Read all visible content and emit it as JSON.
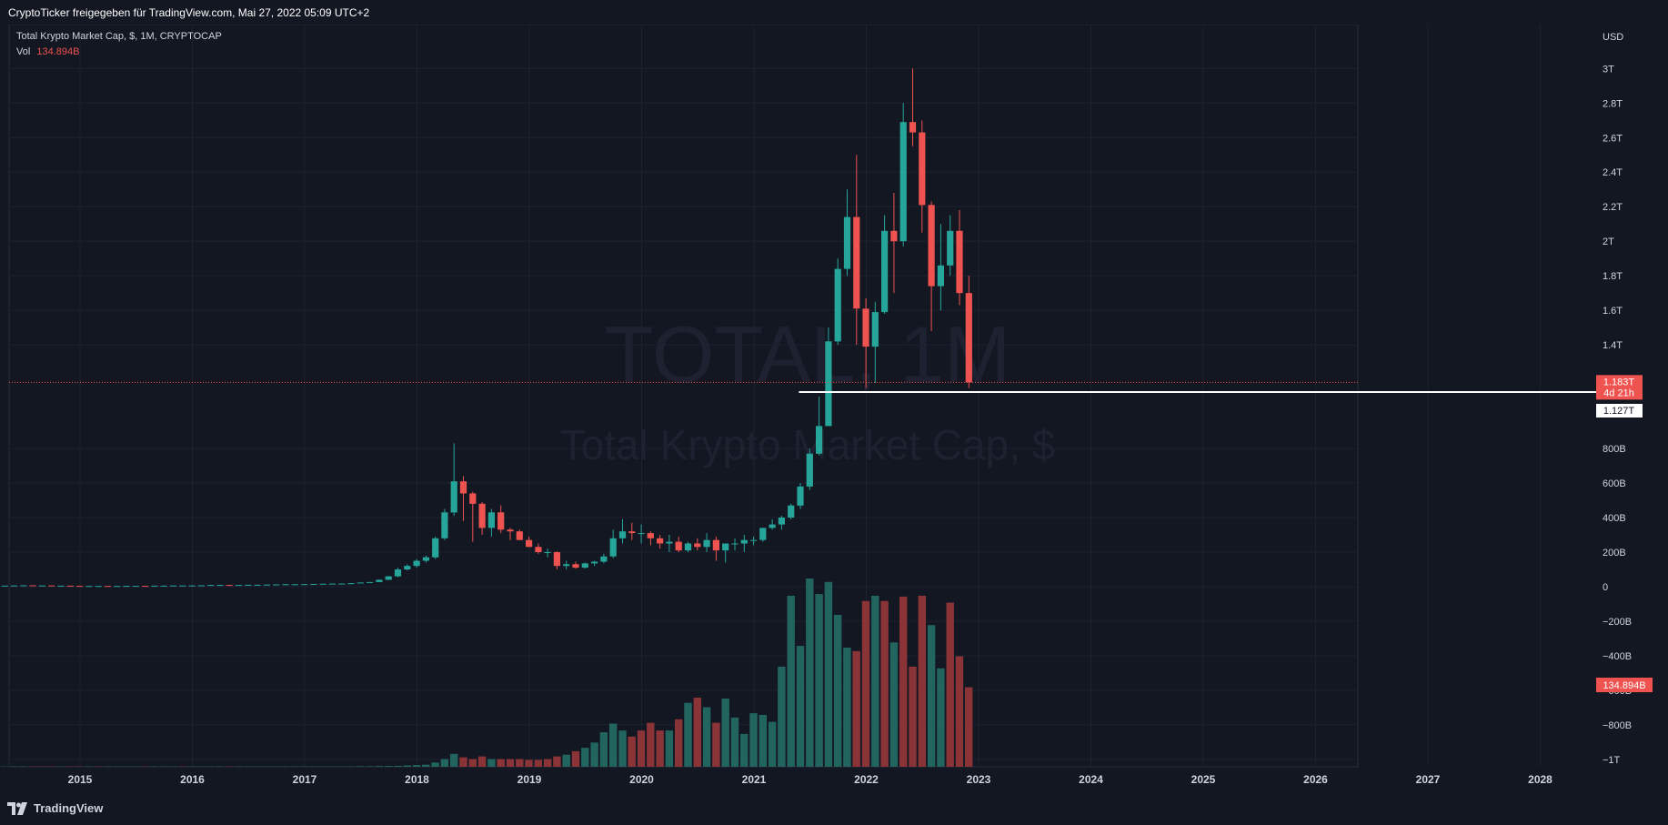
{
  "header": {
    "caption": "CryptoTicker freigegeben für TradingView.com, Mai 27, 2022 05:09 UTC+2"
  },
  "legend": {
    "series_title": "Total Krypto Market Cap, $, 1M, CRYPTOCAP",
    "vol_label": "Vol",
    "vol_value": "134.894B"
  },
  "watermark": {
    "symbol": "TOTAL, 1M",
    "name": "Total Krypto Market Cap, $"
  },
  "footer": {
    "brand": "TradingView"
  },
  "colors": {
    "background": "#131722",
    "grid": "#1e2230",
    "up": "#26a69a",
    "down": "#ef5350",
    "vol_up": "#22655f",
    "vol_down": "#8a3438",
    "support_line": "#ffffff"
  },
  "chart_data": {
    "type": "candlestick",
    "title": "Total Krypto Market Cap, $, 1M, CRYPTOCAP",
    "y_unit": "USD",
    "x_ticks": [
      "2015",
      "2016",
      "2017",
      "2018",
      "2019",
      "2020",
      "2021",
      "2022",
      "2023",
      "2024",
      "2025",
      "2026",
      "2027",
      "2028"
    ],
    "y_ticks": [
      {
        "value": 3000,
        "label": "3T"
      },
      {
        "value": 2800,
        "label": "2.8T"
      },
      {
        "value": 2600,
        "label": "2.6T"
      },
      {
        "value": 2400,
        "label": "2.4T"
      },
      {
        "value": 2200,
        "label": "2.2T"
      },
      {
        "value": 2000,
        "label": "2T"
      },
      {
        "value": 1800,
        "label": "1.8T"
      },
      {
        "value": 1600,
        "label": "1.6T"
      },
      {
        "value": 1400,
        "label": "1.4T"
      },
      {
        "value": 800,
        "label": "800B"
      },
      {
        "value": 600,
        "label": "600B"
      },
      {
        "value": 400,
        "label": "400B"
      },
      {
        "value": 200,
        "label": "200B"
      },
      {
        "value": 0,
        "label": "0"
      },
      {
        "value": -200,
        "label": "−200B"
      },
      {
        "value": -400,
        "label": "−400B"
      },
      {
        "value": -600,
        "label": "−600B"
      },
      {
        "value": -800,
        "label": "−800B"
      },
      {
        "value": -1000,
        "label": "−1T"
      }
    ],
    "price_labels": {
      "last_price": "1.183T",
      "countdown": "4d 21h",
      "support_price": "1.127T",
      "volume": "134.894B"
    },
    "last_price_value": 1183,
    "support_level": {
      "value": 1127,
      "from_year": 2021.4,
      "to_year": 2022.35
    },
    "start_year": 2014.33,
    "bar_step_years": 0.08333,
    "candles": [
      [
        5,
        6,
        5,
        6
      ],
      [
        6,
        7,
        6,
        7
      ],
      [
        7,
        8,
        7,
        8
      ],
      [
        8,
        8,
        7,
        7
      ],
      [
        7,
        8,
        7,
        7
      ],
      [
        7,
        7,
        6,
        6
      ],
      [
        6,
        7,
        6,
        6
      ],
      [
        6,
        6,
        4,
        5
      ],
      [
        5,
        5,
        4,
        4
      ],
      [
        4,
        5,
        4,
        4
      ],
      [
        4,
        4,
        3,
        4
      ],
      [
        4,
        4,
        3,
        3
      ],
      [
        3,
        4,
        3,
        4
      ],
      [
        4,
        5,
        4,
        5
      ],
      [
        5,
        5,
        4,
        5
      ],
      [
        5,
        5,
        4,
        4
      ],
      [
        4,
        6,
        4,
        6
      ],
      [
        6,
        7,
        5,
        6
      ],
      [
        6,
        8,
        6,
        7
      ],
      [
        7,
        8,
        7,
        7
      ],
      [
        7,
        8,
        6,
        7
      ],
      [
        7,
        8,
        7,
        8
      ],
      [
        8,
        10,
        8,
        10
      ],
      [
        10,
        11,
        9,
        10
      ],
      [
        10,
        11,
        8,
        9
      ],
      [
        9,
        10,
        9,
        10
      ],
      [
        10,
        11,
        9,
        11
      ],
      [
        11,
        12,
        10,
        11
      ],
      [
        11,
        12,
        11,
        12
      ],
      [
        12,
        13,
        11,
        13
      ],
      [
        13,
        14,
        12,
        14
      ],
      [
        14,
        15,
        13,
        14
      ],
      [
        14,
        15,
        13,
        15
      ],
      [
        15,
        16,
        14,
        16
      ],
      [
        16,
        18,
        15,
        17
      ],
      [
        17,
        18,
        16,
        18
      ],
      [
        18,
        19,
        17,
        18
      ],
      [
        18,
        20,
        18,
        20
      ],
      [
        20,
        24,
        19,
        24
      ],
      [
        24,
        28,
        23,
        27
      ],
      [
        27,
        41,
        26,
        40
      ],
      [
        40,
        62,
        38,
        60
      ],
      [
        60,
        110,
        55,
        100
      ],
      [
        100,
        130,
        95,
        120
      ],
      [
        120,
        160,
        110,
        150
      ],
      [
        150,
        180,
        140,
        170
      ],
      [
        170,
        290,
        160,
        280
      ],
      [
        280,
        450,
        270,
        430
      ],
      [
        430,
        830,
        410,
        610
      ],
      [
        610,
        640,
        380,
        540
      ],
      [
        540,
        550,
        260,
        480
      ],
      [
        480,
        490,
        300,
        340
      ],
      [
        340,
        450,
        290,
        430
      ],
      [
        430,
        470,
        310,
        330
      ],
      [
        330,
        340,
        270,
        320
      ],
      [
        320,
        330,
        270,
        270
      ],
      [
        270,
        290,
        230,
        230
      ],
      [
        230,
        250,
        190,
        200
      ],
      [
        200,
        220,
        170,
        200
      ],
      [
        200,
        205,
        100,
        120
      ],
      [
        120,
        150,
        100,
        130
      ],
      [
        130,
        145,
        105,
        110
      ],
      [
        110,
        140,
        105,
        135
      ],
      [
        135,
        150,
        120,
        145
      ],
      [
        145,
        190,
        135,
        175
      ],
      [
        175,
        330,
        165,
        280
      ],
      [
        280,
        390,
        250,
        320
      ],
      [
        320,
        370,
        270,
        310
      ],
      [
        310,
        360,
        250,
        310
      ],
      [
        310,
        320,
        240,
        280
      ],
      [
        280,
        300,
        220,
        250
      ],
      [
        250,
        300,
        200,
        260
      ],
      [
        260,
        290,
        200,
        210
      ],
      [
        210,
        260,
        200,
        250
      ],
      [
        250,
        280,
        210,
        230
      ],
      [
        230,
        310,
        200,
        270
      ],
      [
        270,
        290,
        150,
        210
      ],
      [
        210,
        250,
        140,
        250
      ],
      [
        250,
        280,
        210,
        250
      ],
      [
        250,
        300,
        200,
        270
      ],
      [
        270,
        290,
        240,
        270
      ],
      [
        270,
        340,
        260,
        340
      ],
      [
        340,
        390,
        330,
        360
      ],
      [
        360,
        410,
        330,
        400
      ],
      [
        400,
        480,
        390,
        470
      ],
      [
        470,
        600,
        450,
        580
      ],
      [
        580,
        800,
        560,
        770
      ],
      [
        770,
        1100,
        760,
        930
      ],
      [
        930,
        1500,
        930,
        1420
      ],
      [
        1420,
        1900,
        1400,
        1840
      ],
      [
        1840,
        2300,
        1800,
        2140
      ],
      [
        2140,
        2500,
        1400,
        1610
      ],
      [
        1610,
        1670,
        1150,
        1390
      ],
      [
        1390,
        1650,
        1180,
        1590
      ],
      [
        1590,
        2150,
        1580,
        2060
      ],
      [
        2060,
        2280,
        1700,
        2000
      ],
      [
        2000,
        2800,
        1970,
        2690
      ],
      [
        2690,
        3000,
        2550,
        2630
      ],
      [
        2630,
        2700,
        2050,
        2210
      ],
      [
        2210,
        2230,
        1480,
        1740
      ],
      [
        1740,
        2100,
        1600,
        1860
      ],
      [
        1860,
        2150,
        1800,
        2060
      ],
      [
        2060,
        2180,
        1630,
        1700
      ],
      [
        1700,
        1800,
        1150,
        1183
      ]
    ],
    "volumes_billion_scaled": [
      2,
      2,
      2,
      2,
      2,
      2,
      2,
      2,
      2,
      2,
      2,
      2,
      2,
      2,
      2,
      2,
      2,
      2,
      2,
      2,
      2,
      2,
      2,
      2,
      2,
      2,
      2,
      2,
      2,
      2,
      2,
      2,
      2,
      2,
      2,
      2,
      2,
      2,
      3,
      3,
      4,
      5,
      6,
      8,
      10,
      12,
      25,
      45,
      75,
      55,
      45,
      60,
      45,
      45,
      45,
      45,
      40,
      40,
      45,
      60,
      70,
      90,
      110,
      140,
      200,
      250,
      210,
      175,
      210,
      255,
      210,
      210,
      275,
      370,
      400,
      345,
      255,
      395,
      285,
      190,
      310,
      300,
      260,
      580,
      990,
      700,
      1090,
      1000,
      1070,
      880,
      690,
      670,
      960,
      990,
      960,
      720,
      985,
      580,
      990,
      820,
      570,
      950,
      640,
      460
    ],
    "volume_up": [
      true,
      true,
      true,
      false,
      false,
      false,
      true,
      false,
      false,
      true,
      false,
      true,
      true,
      true,
      true,
      false,
      true,
      true,
      true,
      false,
      true,
      true,
      true,
      true,
      false,
      true,
      true,
      true,
      true,
      true,
      true,
      true,
      true,
      true,
      true,
      true,
      true,
      true,
      true,
      true,
      true,
      true,
      true,
      true,
      true,
      true,
      true,
      true,
      true,
      false,
      false,
      false,
      true,
      false,
      false,
      false,
      false,
      false,
      false,
      false,
      true,
      false,
      true,
      true,
      true,
      true,
      true,
      false,
      false,
      false,
      false,
      true,
      false,
      true,
      false,
      true,
      false,
      true,
      true,
      true,
      true,
      true,
      true,
      true,
      true,
      true,
      true,
      true,
      true,
      true,
      true,
      false,
      false,
      true,
      false,
      true,
      false,
      false,
      false,
      true,
      true,
      false,
      false,
      false
    ]
  }
}
